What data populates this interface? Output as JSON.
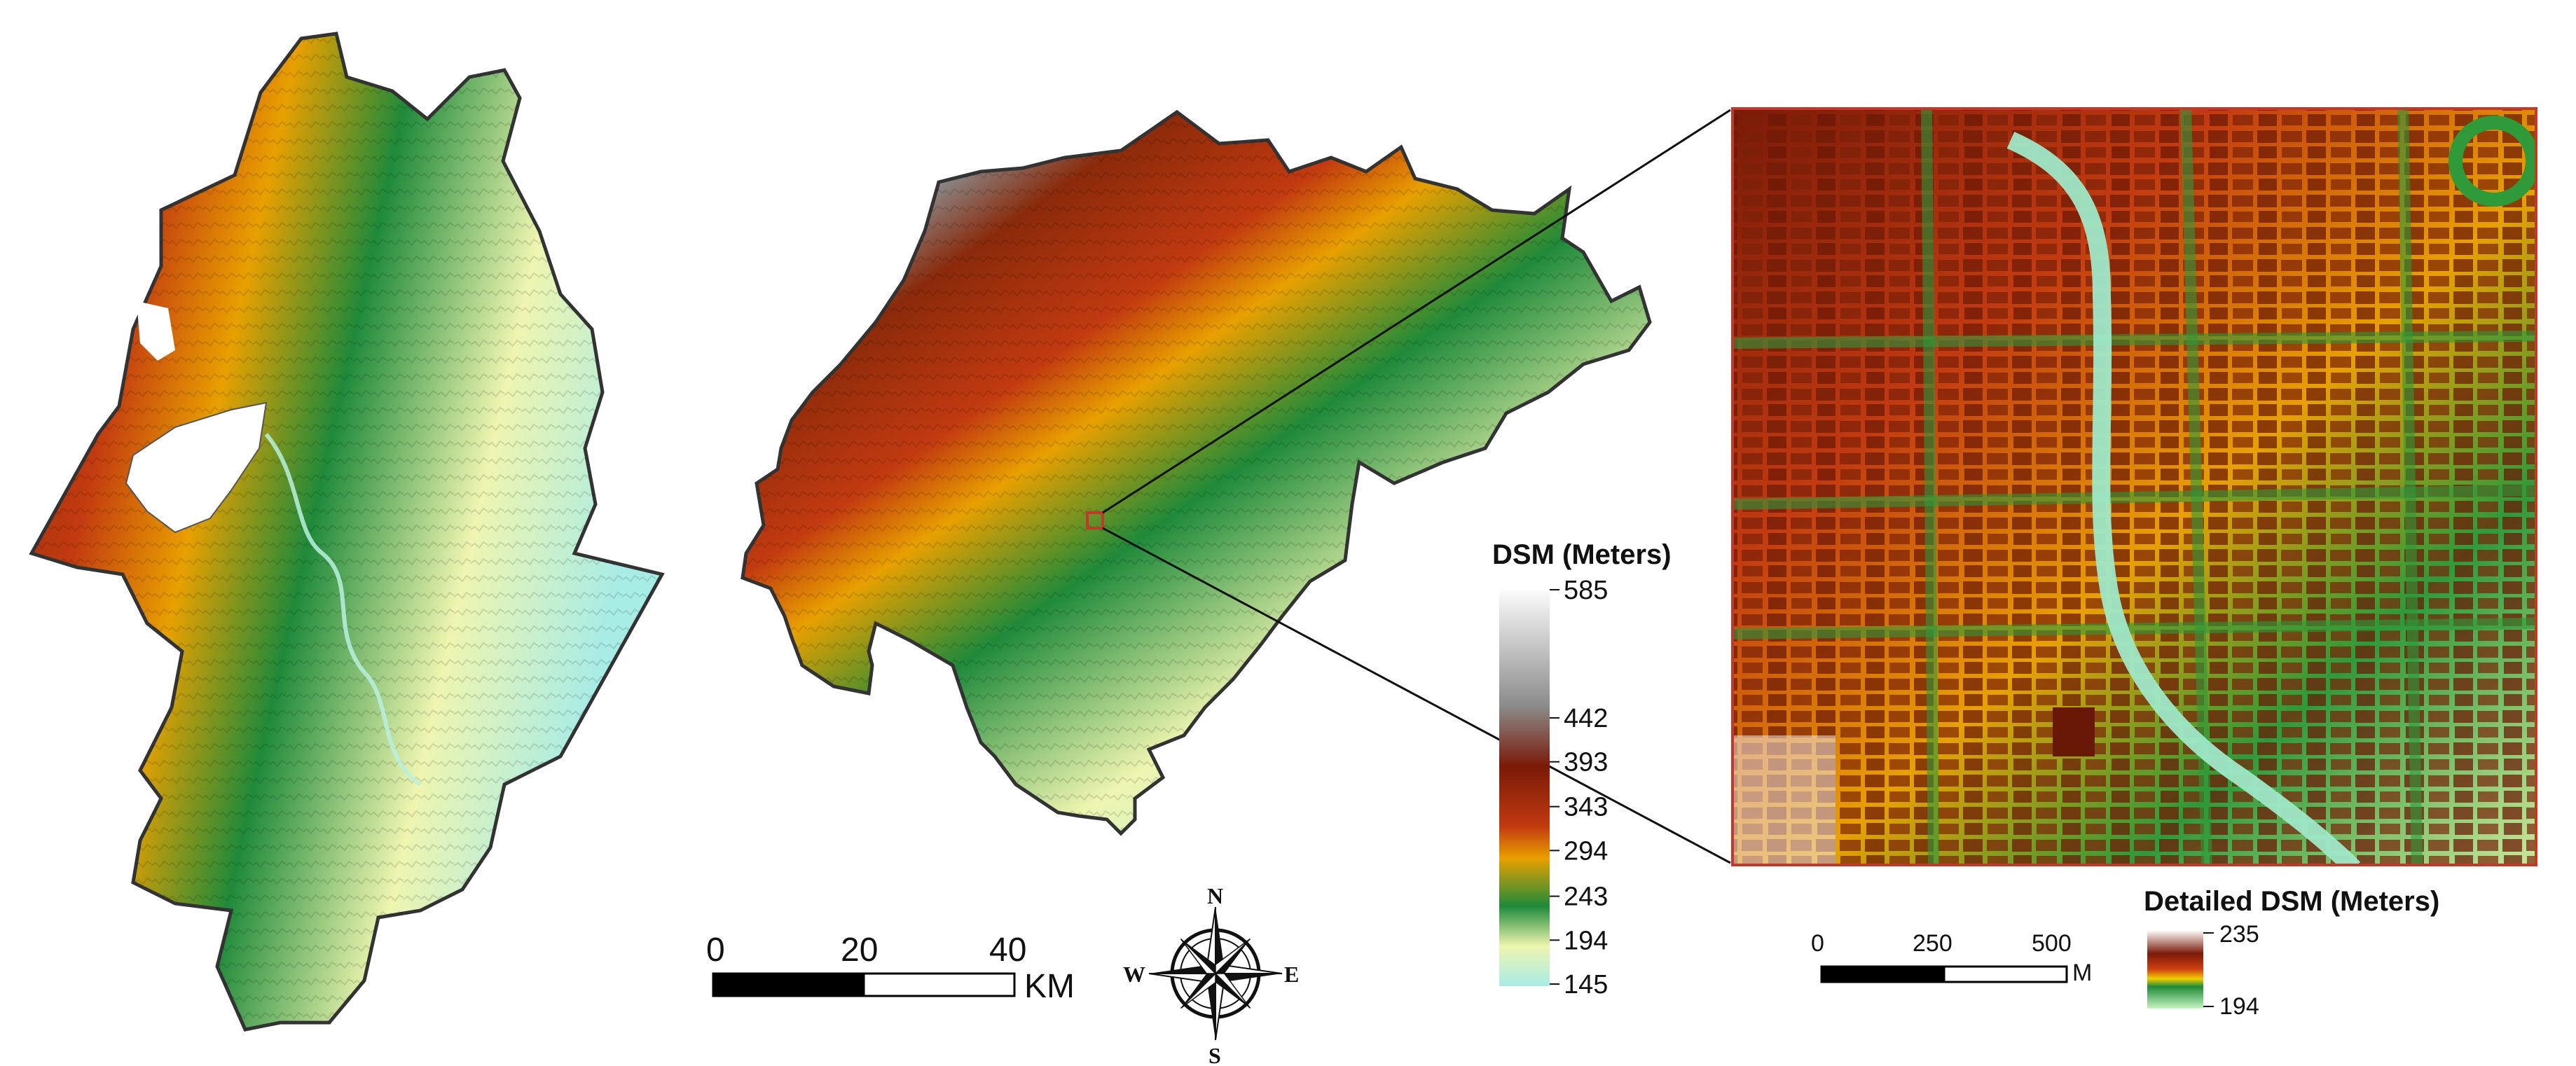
{
  "legend": {
    "title": "DSM (Meters)",
    "ticks": [
      "585",
      "442",
      "393",
      "343",
      "294",
      "243",
      "194",
      "145"
    ],
    "colors": [
      "#f5f5f5",
      "#8a8a8a",
      "#8a2a0a",
      "#c23a10",
      "#e8a000",
      "#1f8a3a",
      "#eef5b0",
      "#a8ece6"
    ]
  },
  "detailed_legend": {
    "title": "Detailed DSM (Meters)",
    "max": "235",
    "min": "194"
  },
  "scalebar_km": {
    "labels": [
      "0",
      "20",
      "40"
    ],
    "unit": "KM"
  },
  "scalebar_m": {
    "labels": [
      "0",
      "250",
      "500"
    ],
    "unit": "M"
  },
  "compass": {
    "n": "N",
    "s": "S",
    "e": "E",
    "w": "W"
  },
  "colors": {
    "low": "#a8ece6",
    "lowland": "#eef5b0",
    "mid": "#1f8a3a",
    "upper": "#e8a000",
    "high": "#8a2a0a",
    "peak": "#f5f5f5",
    "outline": "#333333",
    "inset_frame": "#c0392b"
  }
}
